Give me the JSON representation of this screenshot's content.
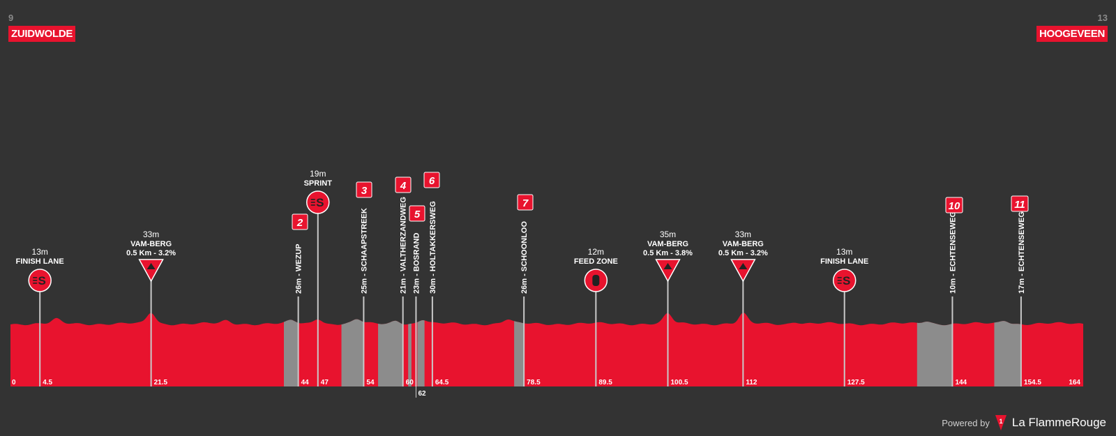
{
  "start": {
    "number": "9",
    "city": "ZUIDWOLDE"
  },
  "finish": {
    "number": "13",
    "city": "HOOGEVEEN"
  },
  "colors": {
    "bg": "#333333",
    "profile": "#e8132e",
    "sector": "#8c8c8c",
    "pin": "#c9c9c9"
  },
  "profile": {
    "distance_max": 164,
    "km_ticks": [
      "0",
      "4.5",
      "21.5",
      "44",
      "47",
      "54",
      "60",
      "64.5",
      "78.5",
      "89.5",
      "100.5",
      "112",
      "127.5",
      "144",
      "154.5",
      "164"
    ],
    "extra_tick": "62",
    "sectors": [
      [
        41.8,
        44
      ],
      [
        50.6,
        54
      ],
      [
        56.2,
        60
      ],
      [
        60.8,
        61.3
      ],
      [
        62.2,
        63.3
      ],
      [
        77,
        78.5
      ],
      [
        138.6,
        144
      ],
      [
        150.4,
        154.5
      ]
    ]
  },
  "markers": [
    {
      "type": "sprint",
      "km": 4.5,
      "elev": "13m",
      "label": "FINISH LANE",
      "icon": "sprint-icon"
    },
    {
      "type": "climb",
      "km": 21.5,
      "elev": "33m",
      "label": "VAM-BERG",
      "detail": "0.5 Km - 3.2%",
      "icon": "climb-icon"
    },
    {
      "type": "sprint",
      "km": 47,
      "elev": "19m",
      "label": "SPRINT",
      "icon": "sprint-icon"
    },
    {
      "type": "feed",
      "km": 89.5,
      "elev": "12m",
      "label": "FEED ZONE",
      "icon": "feed-bottle-icon"
    },
    {
      "type": "climb",
      "km": 100.5,
      "elev": "35m",
      "label": "VAM-BERG",
      "detail": "0.5 Km - 3.8%",
      "icon": "climb-icon"
    },
    {
      "type": "climb",
      "km": 112,
      "elev": "33m",
      "label": "VAM-BERG",
      "detail": "0.5 Km - 3.2%",
      "icon": "climb-icon"
    },
    {
      "type": "sprint",
      "km": 127.5,
      "elev": "13m",
      "label": "FINISH LANE",
      "icon": "sprint-icon"
    }
  ],
  "cobbles": [
    {
      "num": "2",
      "km": 44,
      "text": "26m - WEZUP"
    },
    {
      "num": "3",
      "km": 54,
      "text": "25m - SCHAAPSTREEK"
    },
    {
      "num": "4",
      "km": 60,
      "text": "21m - VALTHERZANDWEG"
    },
    {
      "num": "5",
      "km": 62,
      "text": "23m - BOSRAND"
    },
    {
      "num": "6",
      "km": 64.5,
      "text": "30m - HOLTAKKERSWEG"
    },
    {
      "num": "7",
      "km": 78.5,
      "text": "26m - SCHOONLOO"
    },
    {
      "num": "10",
      "km": 144,
      "text": "10m - ECHTENSEWEG"
    },
    {
      "num": "11",
      "km": 154.5,
      "text": "17m - ECHTENSEWEG"
    }
  ],
  "footer": {
    "powered": "Powered by",
    "brand": "La FlammeRouge"
  }
}
